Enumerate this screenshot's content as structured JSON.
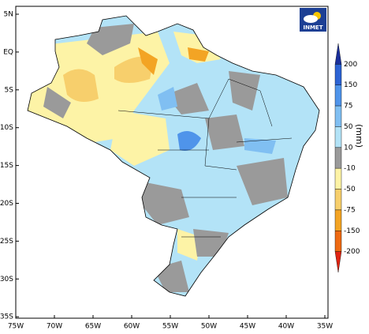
{
  "map": {
    "lat_labels": [
      "5N",
      "EQ",
      "5S",
      "10S",
      "15S",
      "20S",
      "25S",
      "30S",
      "35S"
    ],
    "lon_labels": [
      "75W",
      "70W",
      "65W",
      "60W",
      "55W",
      "50W",
      "45W",
      "40W",
      "35W"
    ],
    "logo": "INMET",
    "legend": {
      "unit": "(mm)",
      "levels": [
        200,
        150,
        75,
        50,
        10,
        -10,
        -50,
        -75,
        -150,
        -200
      ],
      "colors": [
        "#1a2f9c",
        "#2c63d4",
        "#4f94ea",
        "#80bff2",
        "#b3e3f7",
        "#9a9a9a",
        "#fdf3a6",
        "#f7cf6c",
        "#f3a424",
        "#ee6a12",
        "#e02412"
      ]
    }
  }
}
